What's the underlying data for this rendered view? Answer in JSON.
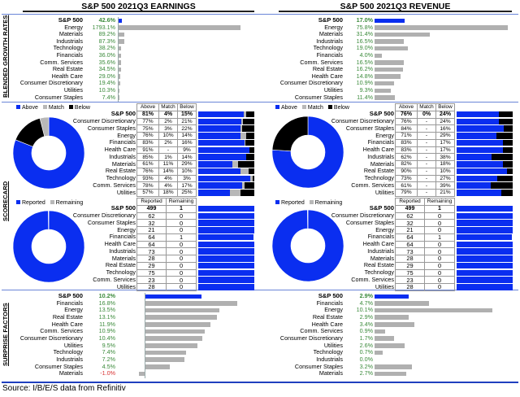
{
  "colors": {
    "above": "#0a2ef0",
    "match": "#b8b8b8",
    "below": "#000000",
    "reported": "#0a2ef0",
    "remaining": "#b8b8b8",
    "positive_text": "#3a8a3a",
    "negative_text": "#d83030",
    "bar_grey": "#b0b0b0"
  },
  "titles": {
    "earnings": "S&P 500 2021Q3 EARNINGS",
    "revenue": "S&P 500 2021Q3 REVENUE"
  },
  "section_labels": {
    "growth": "BLENDED GROWTH RATES",
    "scorecard": "SCORECARD",
    "surprise": "SURPRISE FACTORS"
  },
  "legend": {
    "above": "Above",
    "match": "Match",
    "below": "Below",
    "reported": "Reported",
    "remaining": "Remaining"
  },
  "table_headers": {
    "above": "Above",
    "match": "Match",
    "below": "Below",
    "reported": "Reported",
    "remaining": "Remaining"
  },
  "source": "Source: I/B/E/S data from Refinitiv",
  "chart_data": [
    {
      "type": "bar",
      "title": "S&P 500 2021Q3 EARNINGS - Blended Growth Rates",
      "categories": [
        "S&P 500",
        "Energy",
        "Materials",
        "Industrials",
        "Technology",
        "Financials",
        "Comm. Services",
        "Real Estate",
        "Health Care",
        "Consumer Discretionary",
        "Utilities",
        "Consumer Staples"
      ],
      "values": [
        42.6,
        1793.1,
        89.2,
        87.3,
        38.2,
        36.0,
        35.6,
        34.5,
        29.0,
        19.4,
        10.3,
        7.4
      ],
      "labels": [
        "42.6%",
        "1793.1%",
        "89.2%",
        "87.3%",
        "38.2%",
        "36.0%",
        "35.6%",
        "34.5%",
        "29.0%",
        "19.4%",
        "10.3%",
        "7.4%"
      ]
    },
    {
      "type": "bar",
      "title": "S&P 500 2021Q3 REVENUE - Blended Growth Rates",
      "categories": [
        "S&P 500",
        "Energy",
        "Materials",
        "Industrials",
        "Technology",
        "Financials",
        "Comm. Services",
        "Real Estate",
        "Health Care",
        "Consumer Discretionary",
        "Utilities",
        "Consumer Staples"
      ],
      "values": [
        17.0,
        75.8,
        31.4,
        16.5,
        19.0,
        4.0,
        16.5,
        16.2,
        14.8,
        10.9,
        9.3,
        11.4
      ],
      "labels": [
        "17.0%",
        "75.8%",
        "31.4%",
        "16.5%",
        "19.0%",
        "4.0%",
        "16.5%",
        "16.2%",
        "14.8%",
        "10.9%",
        "9.3%",
        "11.4%"
      ]
    },
    {
      "type": "table",
      "title": "Earnings Scorecard (Above / Match / Below)",
      "categories": [
        "S&P 500",
        "Consumer Discretionary",
        "Consumer Staples",
        "Energy",
        "Financials",
        "Health Care",
        "Industrials",
        "Materials",
        "Real Estate",
        "Technology",
        "Comm. Services",
        "Utilities"
      ],
      "series": [
        {
          "name": "Above",
          "values": [
            81,
            77,
            75,
            76,
            83,
            91,
            85,
            61,
            76,
            93,
            78,
            57
          ],
          "labels": [
            "81%",
            "77%",
            "75%",
            "76%",
            "83%",
            "91%",
            "85%",
            "61%",
            "76%",
            "93%",
            "78%",
            "57%"
          ]
        },
        {
          "name": "Match",
          "values": [
            4,
            2,
            3,
            10,
            2,
            0,
            1,
            11,
            14,
            4,
            4,
            18
          ],
          "labels": [
            "4%",
            "2%",
            "3%",
            "10%",
            "2%",
            "-",
            "1%",
            "11%",
            "14%",
            "4%",
            "4%",
            "18%"
          ]
        },
        {
          "name": "Below",
          "values": [
            15,
            21,
            22,
            14,
            16,
            9,
            14,
            29,
            10,
            3,
            17,
            25
          ],
          "labels": [
            "15%",
            "21%",
            "22%",
            "14%",
            "16%",
            "9%",
            "14%",
            "29%",
            "10%",
            "3%",
            "17%",
            "25%"
          ]
        }
      ],
      "donut": {
        "Above": 81,
        "Match": 4,
        "Below": 15
      }
    },
    {
      "type": "table",
      "title": "Revenue Scorecard (Above / Match / Below)",
      "categories": [
        "S&P 500",
        "Consumer Discretionary",
        "Consumer Staples",
        "Energy",
        "Financials",
        "Health Care",
        "Industrials",
        "Materials",
        "Real Estate",
        "Technology",
        "Comm. Services",
        "Utilities"
      ],
      "series": [
        {
          "name": "Above",
          "values": [
            76,
            76,
            84,
            71,
            83,
            83,
            62,
            82,
            90,
            73,
            61,
            79
          ],
          "labels": [
            "76%",
            "76%",
            "84%",
            "71%",
            "83%",
            "83%",
            "62%",
            "82%",
            "90%",
            "73%",
            "61%",
            "79%"
          ]
        },
        {
          "name": "Match",
          "values": [
            0,
            0,
            0,
            0,
            0,
            0,
            0,
            0,
            0,
            0,
            0,
            0
          ],
          "labels": [
            "0%",
            "-",
            "-",
            "-",
            "-",
            "-",
            "-",
            "-",
            "-",
            "-",
            "-",
            "-"
          ]
        },
        {
          "name": "Below",
          "values": [
            24,
            24,
            16,
            29,
            17,
            17,
            38,
            18,
            10,
            27,
            39,
            21
          ],
          "labels": [
            "24%",
            "24%",
            "16%",
            "29%",
            "17%",
            "17%",
            "38%",
            "18%",
            "10%",
            "27%",
            "39%",
            "21%"
          ]
        }
      ],
      "donut": {
        "Above": 76,
        "Match": 0,
        "Below": 24
      }
    },
    {
      "type": "table",
      "title": "Earnings Reporting Progress",
      "categories": [
        "S&P 500",
        "Consumer Discretionary",
        "Consumer Staples",
        "Energy",
        "Financials",
        "Health Care",
        "Industrials",
        "Materials",
        "Real Estate",
        "Technology",
        "Comm. Services",
        "Utilities"
      ],
      "series": [
        {
          "name": "Reported",
          "values": [
            499,
            62,
            32,
            21,
            64,
            64,
            73,
            28,
            29,
            75,
            23,
            28
          ]
        },
        {
          "name": "Remaining",
          "values": [
            1,
            0,
            0,
            0,
            1,
            0,
            0,
            0,
            0,
            0,
            0,
            0
          ]
        }
      ],
      "donut": {
        "Reported": 499,
        "Remaining": 1
      }
    },
    {
      "type": "table",
      "title": "Revenue Reporting Progress",
      "categories": [
        "S&P 500",
        "Consumer Discretionary",
        "Consumer Staples",
        "Energy",
        "Financials",
        "Health Care",
        "Industrials",
        "Materials",
        "Real Estate",
        "Technology",
        "Comm. Services",
        "Utilities"
      ],
      "series": [
        {
          "name": "Reported",
          "values": [
            499,
            62,
            32,
            21,
            64,
            64,
            73,
            28,
            29,
            75,
            23,
            28
          ]
        },
        {
          "name": "Remaining",
          "values": [
            1,
            0,
            0,
            0,
            1,
            0,
            0,
            0,
            0,
            0,
            0,
            0
          ]
        }
      ],
      "donut": {
        "Reported": 499,
        "Remaining": 1
      }
    },
    {
      "type": "bar",
      "title": "Earnings Surprise Factors",
      "categories": [
        "S&P 500",
        "Financials",
        "Energy",
        "Real Estate",
        "Health Care",
        "Comm. Services",
        "Consumer Discretionary",
        "Utilities",
        "Technology",
        "Industrials",
        "Consumer Staples",
        "Materials"
      ],
      "values": [
        10.2,
        16.8,
        13.5,
        13.1,
        11.9,
        10.9,
        10.4,
        9.5,
        7.4,
        7.2,
        4.5,
        -1.0
      ],
      "labels": [
        "10.2%",
        "16.8%",
        "13.5%",
        "13.1%",
        "11.9%",
        "10.9%",
        "10.4%",
        "9.5%",
        "7.4%",
        "7.2%",
        "4.5%",
        "-1.0%"
      ]
    },
    {
      "type": "bar",
      "title": "Revenue Surprise Factors",
      "categories": [
        "S&P 500",
        "Financials",
        "Energy",
        "Real Estate",
        "Health Care",
        "Comm. Services",
        "Consumer Discretionary",
        "Utilities",
        "Technology",
        "Industrials",
        "Consumer Staples",
        "Materials"
      ],
      "values": [
        2.9,
        4.7,
        10.1,
        2.9,
        3.4,
        0.9,
        1.7,
        2.6,
        0.7,
        0.0,
        3.2,
        2.7
      ],
      "labels": [
        "2.9%",
        "4.7%",
        "10.1%",
        "2.9%",
        "3.4%",
        "0.9%",
        "1.7%",
        "2.6%",
        "0.7%",
        "0.0%",
        "3.2%",
        "2.7%"
      ]
    }
  ]
}
